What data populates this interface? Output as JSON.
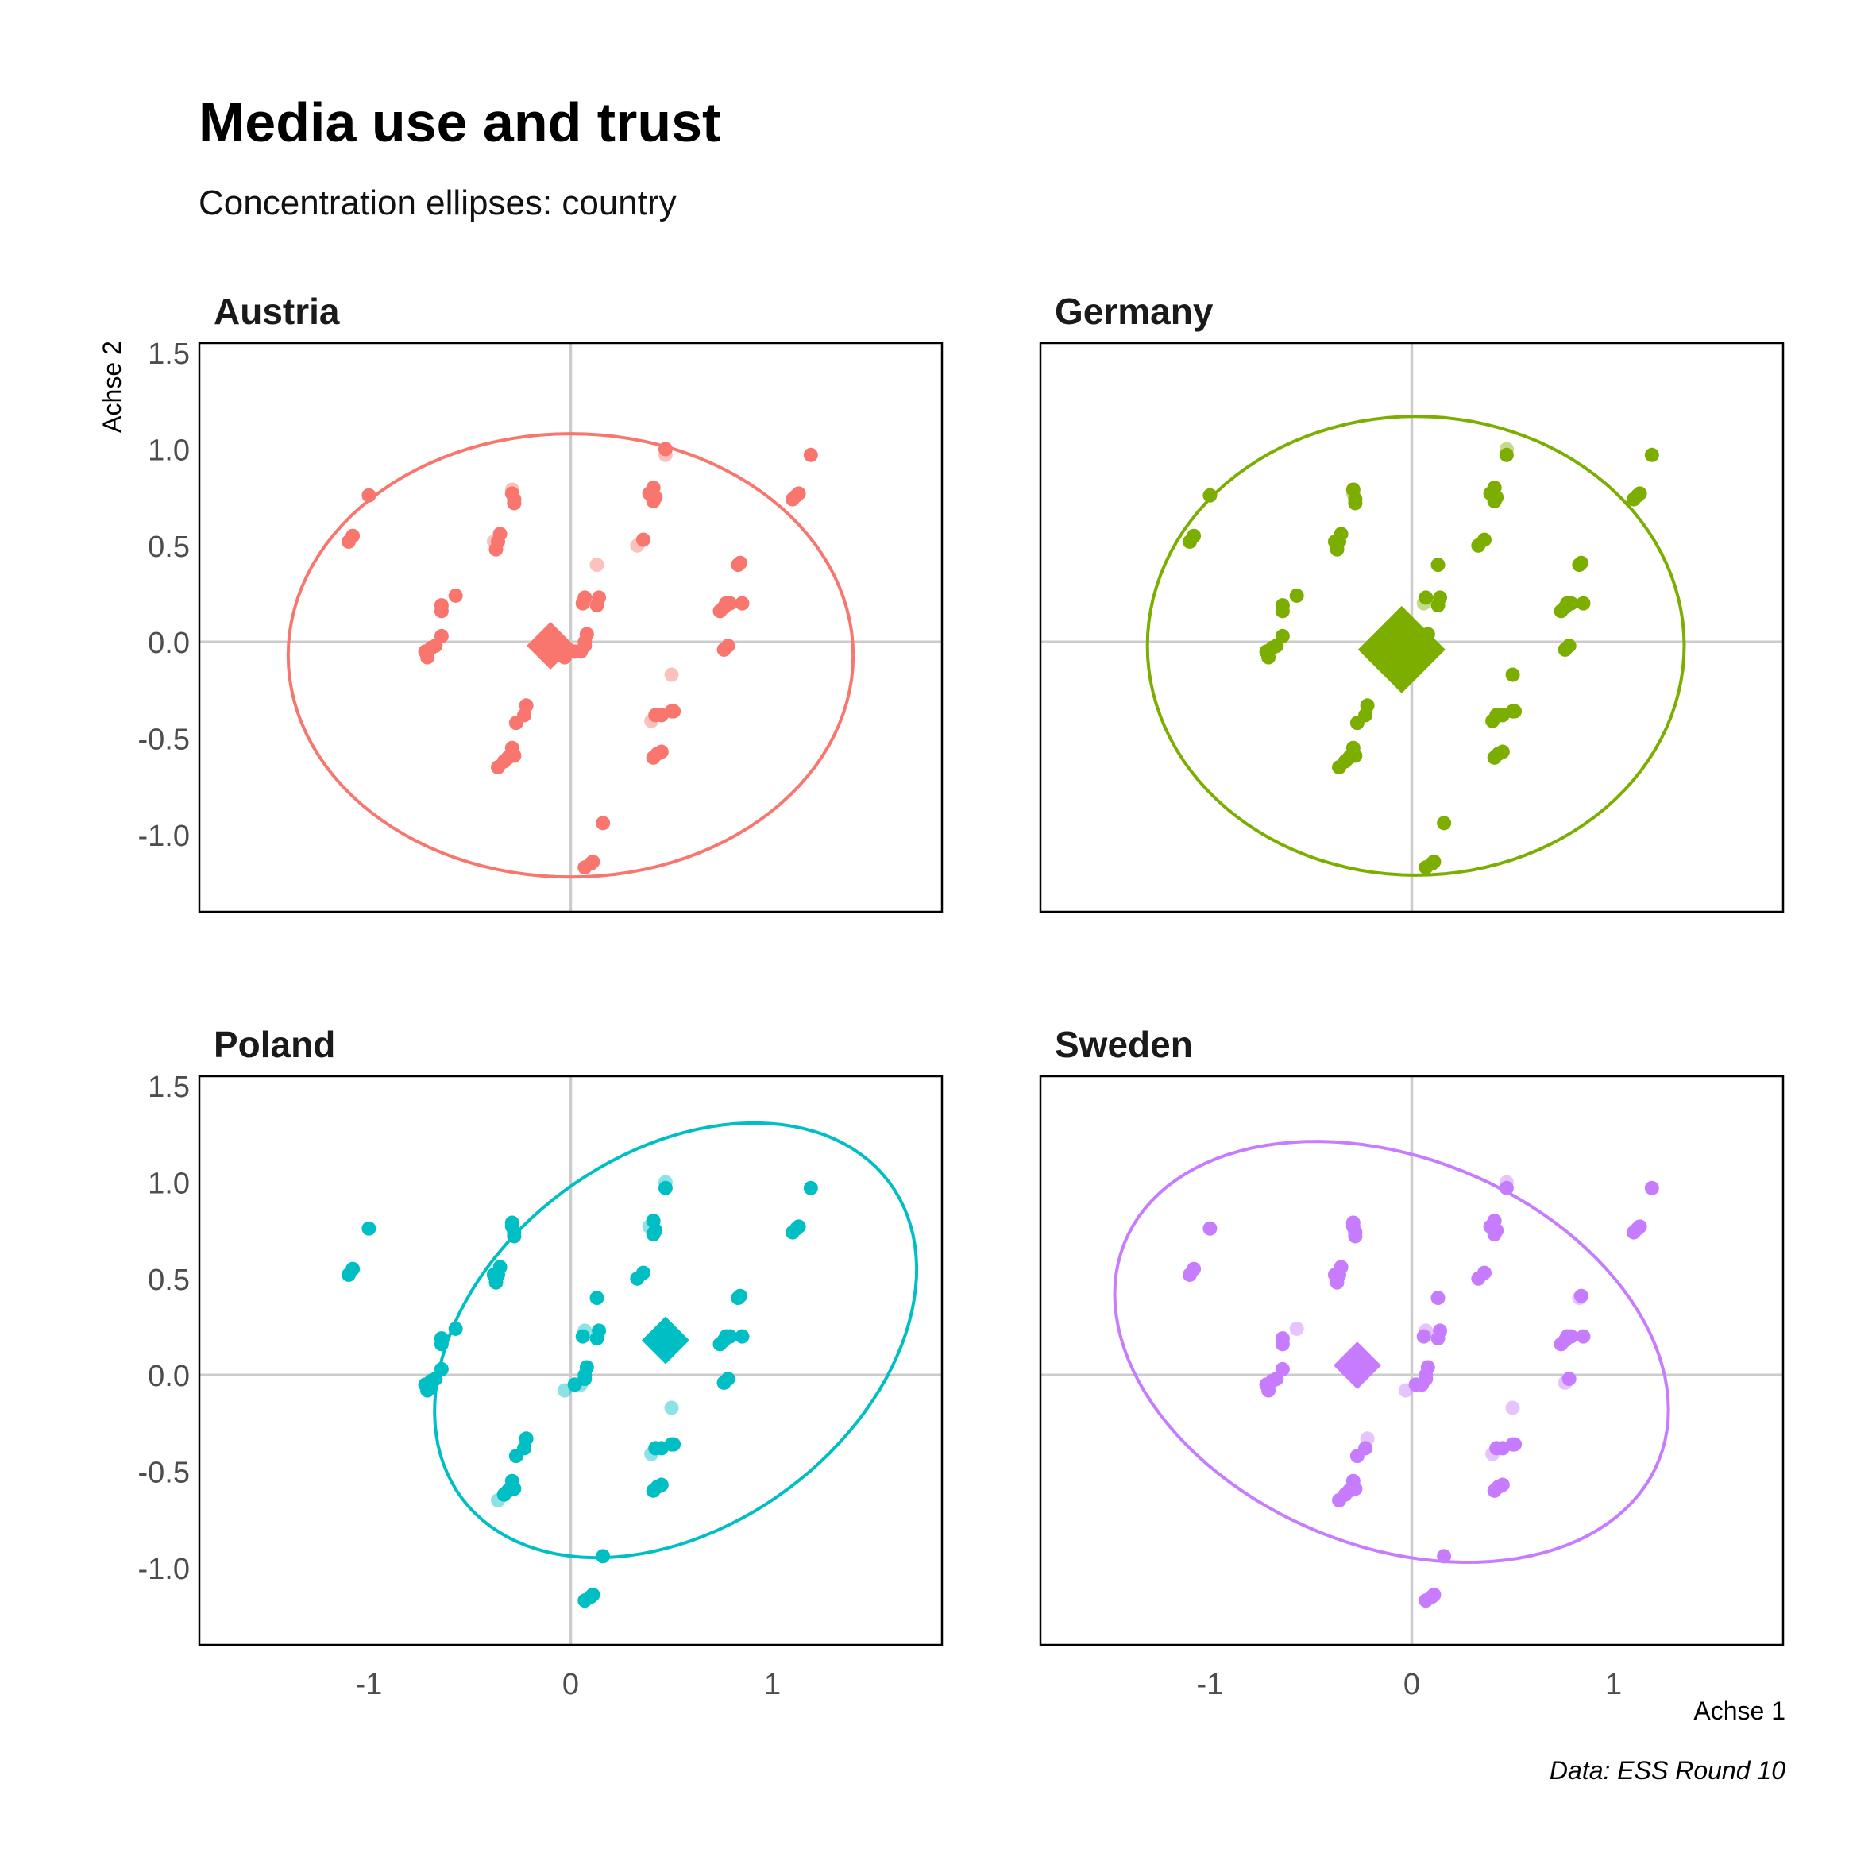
{
  "title": "Media use and trust",
  "subtitle": "Concentration ellipses: country",
  "caption": "Data: ESS Round 10",
  "chart_data": {
    "type": "scatter",
    "xlabel": "Achse 1",
    "ylabel": "Achse 2",
    "xlim": [
      -1.84,
      1.84
    ],
    "ylim": [
      -1.4,
      1.55
    ],
    "xticks": [
      -1,
      0,
      1
    ],
    "xtick_labels": [
      "-1",
      "0",
      "1"
    ],
    "yticks": [
      1.5,
      1.0,
      0.5,
      0.0,
      -0.5,
      -1.0
    ],
    "ytick_labels": [
      "1.5",
      "1.0",
      "0.5",
      "0.0",
      "-0.5",
      "-1.0"
    ],
    "grid": false,
    "reference_lines": [
      0,
      0
    ],
    "points": [
      [
        -1.1,
        0.52
      ],
      [
        -1.08,
        0.55
      ],
      [
        -1.0,
        0.76
      ],
      [
        -0.72,
        -0.05
      ],
      [
        -0.71,
        -0.08
      ],
      [
        -0.69,
        -0.03
      ],
      [
        -0.67,
        -0.02
      ],
      [
        -0.64,
        0.03
      ],
      [
        -0.64,
        0.16
      ],
      [
        -0.64,
        0.19
      ],
      [
        -0.57,
        0.24
      ],
      [
        -0.36,
        -0.65
      ],
      [
        -0.33,
        -0.62
      ],
      [
        -0.31,
        -0.6
      ],
      [
        -0.29,
        -0.55
      ],
      [
        -0.28,
        -0.59
      ],
      [
        -0.27,
        -0.42
      ],
      [
        -0.23,
        -0.38
      ],
      [
        -0.22,
        -0.33
      ],
      [
        -0.38,
        0.52
      ],
      [
        -0.37,
        0.48
      ],
      [
        -0.36,
        0.52
      ],
      [
        -0.35,
        0.56
      ],
      [
        -0.29,
        0.77
      ],
      [
        -0.29,
        0.79
      ],
      [
        -0.28,
        0.74
      ],
      [
        -0.28,
        0.72
      ],
      [
        -0.03,
        -0.08
      ],
      [
        0.02,
        -0.05
      ],
      [
        0.05,
        -0.05
      ],
      [
        0.07,
        -0.02
      ],
      [
        0.07,
        0.0
      ],
      [
        0.08,
        0.04
      ],
      [
        0.06,
        0.2
      ],
      [
        0.07,
        0.23
      ],
      [
        0.13,
        0.19
      ],
      [
        0.14,
        0.23
      ],
      [
        0.13,
        0.4
      ],
      [
        0.07,
        -1.17
      ],
      [
        0.1,
        -1.15
      ],
      [
        0.11,
        -1.14
      ],
      [
        0.16,
        -0.94
      ],
      [
        0.33,
        0.5
      ],
      [
        0.36,
        0.53
      ],
      [
        0.39,
        0.77
      ],
      [
        0.41,
        0.73
      ],
      [
        0.41,
        0.8
      ],
      [
        0.42,
        0.75
      ],
      [
        0.47,
        0.97
      ],
      [
        0.47,
        1.0
      ],
      [
        0.5,
        -0.17
      ],
      [
        0.4,
        -0.41
      ],
      [
        0.42,
        -0.38
      ],
      [
        0.45,
        -0.38
      ],
      [
        0.5,
        -0.36
      ],
      [
        0.51,
        -0.36
      ],
      [
        0.41,
        -0.6
      ],
      [
        0.43,
        -0.58
      ],
      [
        0.45,
        -0.57
      ],
      [
        0.74,
        0.16
      ],
      [
        0.76,
        0.18
      ],
      [
        0.77,
        0.2
      ],
      [
        0.79,
        0.2
      ],
      [
        0.83,
        0.4
      ],
      [
        0.84,
        0.41
      ],
      [
        0.85,
        0.2
      ],
      [
        0.76,
        -0.04
      ],
      [
        0.78,
        -0.02
      ],
      [
        1.1,
        0.74
      ],
      [
        1.12,
        0.76
      ],
      [
        1.13,
        0.77
      ],
      [
        1.19,
        0.97
      ]
    ],
    "panels": [
      {
        "name": "Austria",
        "color": "#F8766D",
        "centroid": [
          -0.1,
          -0.02
        ],
        "centroid_size": "small",
        "ellipse": {
          "cx": 0.0,
          "cy": -0.07,
          "rx": 1.4,
          "ry": 1.15,
          "angle_deg": 0
        },
        "faded_points": [
          [
            -0.38,
            0.52
          ],
          [
            -0.29,
            0.79
          ],
          [
            0.13,
            0.4
          ],
          [
            0.05,
            0.2
          ],
          [
            0.33,
            0.5
          ],
          [
            0.47,
            0.97
          ],
          [
            0.5,
            -0.17
          ],
          [
            0.4,
            -0.41
          ],
          [
            0.0,
            -0.05
          ]
        ]
      },
      {
        "name": "Germany",
        "color": "#7CAE00",
        "centroid": [
          -0.05,
          -0.04
        ],
        "centroid_size": "large",
        "ellipse": {
          "cx": 0.02,
          "cy": -0.02,
          "rx": 1.33,
          "ry": 1.19,
          "angle_deg": 0
        },
        "faded_points": [
          [
            -0.29,
            0.77
          ],
          [
            0.06,
            0.2
          ],
          [
            0.38,
            0.77
          ],
          [
            0.47,
            1.0
          ]
        ]
      },
      {
        "name": "Poland",
        "color": "#00BFC4",
        "centroid": [
          0.47,
          0.18
        ],
        "centroid_size": "small",
        "ellipse": {
          "cx": 0.52,
          "cy": 0.18,
          "rx": 1.34,
          "ry": 0.95,
          "angle_deg": 40
        },
        "faded_points": [
          [
            -0.24,
            0.99
          ],
          [
            -0.33,
            0.76
          ],
          [
            -0.29,
            0.78
          ],
          [
            0.12,
            0.42
          ],
          [
            0.13,
            0.39
          ],
          [
            0.07,
            0.23
          ],
          [
            0.39,
            0.77
          ],
          [
            0.38,
            0.72
          ],
          [
            0.47,
            1.0
          ],
          [
            0.5,
            -0.17
          ],
          [
            0.4,
            -0.41
          ],
          [
            0.05,
            -0.05
          ],
          [
            -0.03,
            -0.08
          ],
          [
            -0.36,
            -0.65
          ]
        ]
      },
      {
        "name": "Sweden",
        "color": "#C77CFF",
        "centroid": [
          -0.27,
          0.05
        ],
        "centroid_size": "small",
        "ellipse": {
          "cx": -0.1,
          "cy": 0.12,
          "rx": 1.44,
          "ry": 1.0,
          "angle_deg": -25
        },
        "faded_points": [
          [
            -0.24,
            0.99
          ],
          [
            -0.57,
            0.24
          ],
          [
            0.13,
            0.22
          ],
          [
            0.07,
            0.23
          ],
          [
            0.38,
            0.72
          ],
          [
            0.47,
            1.0
          ],
          [
            0.83,
            0.4
          ],
          [
            0.76,
            -0.04
          ],
          [
            -0.22,
            -0.33
          ],
          [
            0.5,
            -0.17
          ],
          [
            0.4,
            -0.41
          ],
          [
            -0.03,
            -0.08
          ]
        ]
      }
    ]
  }
}
